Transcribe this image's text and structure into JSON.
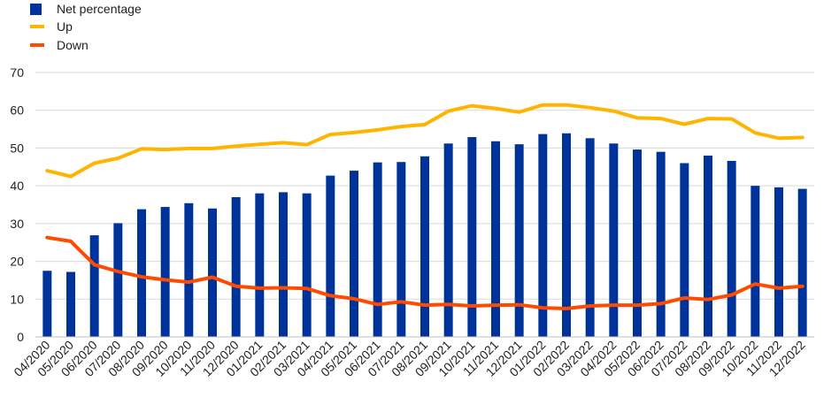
{
  "chart_data": {
    "type": "bar",
    "categories": [
      "04/2020",
      "05/2020",
      "06/2020",
      "07/2020",
      "08/2020",
      "09/2020",
      "10/2020",
      "11/2020",
      "12/2020",
      "01/2021",
      "02/2021",
      "03/2021",
      "04/2021",
      "05/2021",
      "06/2021",
      "07/2021",
      "08/2021",
      "09/2021",
      "10/2021",
      "11/2021",
      "12/2021",
      "01/2022",
      "02/2022",
      "03/2022",
      "04/2022",
      "05/2022",
      "06/2022",
      "07/2022",
      "08/2022",
      "09/2022",
      "10/2022",
      "11/2022",
      "12/2022"
    ],
    "series": [
      {
        "name": "Net percentage",
        "type": "bar",
        "color": "#003399",
        "values": [
          17.5,
          17.2,
          26.9,
          30.1,
          33.8,
          34.4,
          35.4,
          34.0,
          37.0,
          38.0,
          38.3,
          38.0,
          42.7,
          44.0,
          46.2,
          46.3,
          47.8,
          51.2,
          52.9,
          51.8,
          51.0,
          53.7,
          53.9,
          52.6,
          51.2,
          49.6,
          49.0,
          46.0,
          48.0,
          46.6,
          40.0,
          39.6,
          39.2
        ]
      },
      {
        "name": "Up",
        "type": "line",
        "color": "#FFB400",
        "values": [
          44.0,
          42.5,
          46.0,
          47.3,
          49.8,
          49.6,
          49.9,
          49.9,
          50.5,
          51.0,
          51.4,
          50.9,
          53.6,
          54.1,
          54.8,
          55.7,
          56.2,
          59.8,
          61.2,
          60.5,
          59.5,
          61.4,
          61.4,
          60.7,
          59.8,
          58.0,
          57.8,
          56.3,
          57.8,
          57.7,
          54.0,
          52.6,
          52.8
        ]
      },
      {
        "name": "Down",
        "type": "line",
        "color": "#FF4B00",
        "values": [
          26.3,
          25.3,
          19.1,
          17.3,
          15.9,
          15.1,
          14.5,
          15.8,
          13.4,
          12.9,
          13.0,
          12.8,
          10.9,
          10.1,
          8.6,
          9.3,
          8.4,
          8.6,
          8.2,
          8.4,
          8.5,
          7.7,
          7.5,
          8.2,
          8.4,
          8.4,
          8.8,
          10.3,
          9.9,
          11.1,
          14.0,
          12.9,
          13.4
        ]
      }
    ],
    "title": "",
    "xlabel": "",
    "ylabel": "",
    "ylim": [
      0,
      70
    ],
    "yticks": [
      0,
      10,
      20,
      30,
      40,
      50,
      60,
      70
    ],
    "grid": "horizontal",
    "legend_placement": "top-left",
    "grid_color": "#d9d9d9"
  }
}
